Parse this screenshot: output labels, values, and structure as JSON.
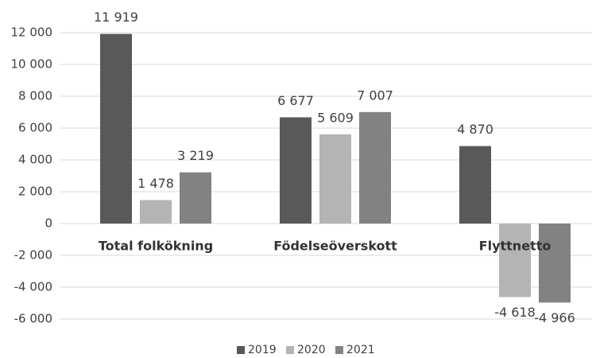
{
  "chart_data": {
    "type": "bar",
    "categories": [
      "Total folkökning",
      "Födelseöverskott",
      "Flyttnetto"
    ],
    "series": [
      {
        "name": "2019",
        "color": "#595959",
        "values": [
          11919,
          6677,
          4870
        ],
        "value_labels": [
          "11 919",
          "6 677",
          "4 870"
        ]
      },
      {
        "name": "2020",
        "color": "#b4b4b4",
        "values": [
          1478,
          5609,
          -4618
        ],
        "value_labels": [
          "1 478",
          "5 609",
          "-4 618"
        ]
      },
      {
        "name": "2021",
        "color": "#828282",
        "values": [
          3219,
          7007,
          -4966
        ],
        "value_labels": [
          "3 219",
          "7 007",
          "-4 966"
        ]
      }
    ],
    "ylim": [
      -6000,
      12000
    ],
    "yticks": [
      {
        "value": -6000,
        "label": "-6 000"
      },
      {
        "value": -4000,
        "label": "-4 000"
      },
      {
        "value": -2000,
        "label": "-2 000"
      },
      0,
      {
        "value": 2000,
        "label": "2 000"
      },
      {
        "value": 4000,
        "label": "4 000"
      },
      {
        "value": 6000,
        "label": "6 000"
      },
      {
        "value": 8000,
        "label": "8 000"
      },
      {
        "value": 10000,
        "label": "10 000"
      },
      {
        "value": 12000,
        "label": "12 000"
      }
    ],
    "grid": true,
    "legend": "bottom"
  }
}
